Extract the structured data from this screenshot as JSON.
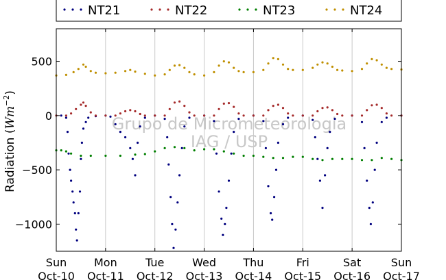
{
  "chart_data": {
    "type": "scatter",
    "ylabel_prefix": "Radiation (",
    "ylabel_unit": "Wm",
    "ylabel_exp": "−2",
    "ylabel_suffix": ")",
    "ylim": [
      -1250,
      800
    ],
    "yticks": [
      500,
      0,
      -500,
      -1000
    ],
    "ytick_labels": [
      "500",
      "0",
      "−500",
      "−1000"
    ],
    "xlim": [
      0,
      7
    ],
    "xticks": [
      {
        "day": "Sun",
        "date": "Oct-10"
      },
      {
        "day": "Mon",
        "date": "Oct-11"
      },
      {
        "day": "Tue",
        "date": "Oct-12"
      },
      {
        "day": "Wed",
        "date": "Oct-13"
      },
      {
        "day": "Thu",
        "date": "Oct-14"
      },
      {
        "day": "Fri",
        "date": "Oct-15"
      },
      {
        "day": "Sat",
        "date": "Oct-16"
      },
      {
        "day": "Sun",
        "date": "Oct-17"
      }
    ],
    "grid": "vertical",
    "legend_position": "top",
    "watermark_line1": "Grupo de Micrometeorologia",
    "watermark_line2": "IAG / USP",
    "series": [
      {
        "name": "NT21",
        "color": "#00007f",
        "points": [
          [
            0.1,
            0
          ],
          [
            0.2,
            -20
          ],
          [
            0.23,
            -150
          ],
          [
            0.25,
            -350
          ],
          [
            0.28,
            -500
          ],
          [
            0.3,
            -600
          ],
          [
            0.33,
            -700
          ],
          [
            0.35,
            -800
          ],
          [
            0.38,
            -900
          ],
          [
            0.4,
            -1050
          ],
          [
            0.42,
            -1150
          ],
          [
            0.45,
            -900
          ],
          [
            0.48,
            -700
          ],
          [
            0.5,
            -400
          ],
          [
            0.52,
            -250
          ],
          [
            0.55,
            -120
          ],
          [
            0.6,
            -60
          ],
          [
            0.65,
            -20
          ],
          [
            0.8,
            -5
          ],
          [
            1.0,
            0
          ],
          [
            1.1,
            -10
          ],
          [
            1.2,
            -80
          ],
          [
            1.3,
            -150
          ],
          [
            1.4,
            -200
          ],
          [
            1.5,
            -300
          ],
          [
            1.55,
            -400
          ],
          [
            1.6,
            -550
          ],
          [
            1.65,
            -250
          ],
          [
            1.7,
            -100
          ],
          [
            1.8,
            -20
          ],
          [
            2.0,
            0
          ],
          [
            2.2,
            -30
          ],
          [
            2.25,
            -200
          ],
          [
            2.28,
            -450
          ],
          [
            2.32,
            -750
          ],
          [
            2.35,
            -1000
          ],
          [
            2.38,
            -1220
          ],
          [
            2.42,
            -1050
          ],
          [
            2.46,
            -800
          ],
          [
            2.5,
            -550
          ],
          [
            2.55,
            -300
          ],
          [
            2.6,
            -100
          ],
          [
            2.7,
            -20
          ],
          [
            3.0,
            0
          ],
          [
            3.2,
            -50
          ],
          [
            3.25,
            -350
          ],
          [
            3.3,
            -700
          ],
          [
            3.35,
            -950
          ],
          [
            3.38,
            -1100
          ],
          [
            3.42,
            -1000
          ],
          [
            3.45,
            -850
          ],
          [
            3.5,
            -600
          ],
          [
            3.55,
            -350
          ],
          [
            3.6,
            -150
          ],
          [
            3.7,
            -30
          ],
          [
            4.0,
            0
          ],
          [
            4.2,
            -50
          ],
          [
            4.25,
            -300
          ],
          [
            4.3,
            -650
          ],
          [
            4.35,
            -900
          ],
          [
            4.38,
            -960
          ],
          [
            4.42,
            -750
          ],
          [
            4.46,
            -500
          ],
          [
            4.5,
            -250
          ],
          [
            4.6,
            -80
          ],
          [
            4.7,
            -20
          ],
          [
            5.0,
            0
          ],
          [
            5.2,
            -40
          ],
          [
            5.25,
            -200
          ],
          [
            5.3,
            -400
          ],
          [
            5.35,
            -600
          ],
          [
            5.4,
            -850
          ],
          [
            5.45,
            -550
          ],
          [
            5.5,
            -300
          ],
          [
            5.55,
            -150
          ],
          [
            5.65,
            -30
          ],
          [
            6.0,
            0
          ],
          [
            6.2,
            -60
          ],
          [
            6.25,
            -300
          ],
          [
            6.3,
            -600
          ],
          [
            6.35,
            -850
          ],
          [
            6.38,
            -1000
          ],
          [
            6.42,
            -800
          ],
          [
            6.46,
            -500
          ],
          [
            6.5,
            -250
          ],
          [
            6.6,
            -60
          ],
          [
            6.7,
            -20
          ],
          [
            7.0,
            0
          ]
        ]
      },
      {
        "name": "NT22",
        "color": "#a52a2a",
        "points": [
          [
            0.0,
            0
          ],
          [
            0.2,
            0
          ],
          [
            0.3,
            20
          ],
          [
            0.4,
            60
          ],
          [
            0.5,
            100
          ],
          [
            0.55,
            120
          ],
          [
            0.6,
            90
          ],
          [
            0.7,
            30
          ],
          [
            0.8,
            0
          ],
          [
            1.0,
            0
          ],
          [
            1.2,
            0
          ],
          [
            1.3,
            20
          ],
          [
            1.4,
            40
          ],
          [
            1.5,
            50
          ],
          [
            1.6,
            40
          ],
          [
            1.7,
            15
          ],
          [
            1.8,
            0
          ],
          [
            2.0,
            0
          ],
          [
            2.2,
            0
          ],
          [
            2.3,
            60
          ],
          [
            2.4,
            120
          ],
          [
            2.5,
            130
          ],
          [
            2.6,
            90
          ],
          [
            2.7,
            30
          ],
          [
            2.8,
            0
          ],
          [
            3.0,
            0
          ],
          [
            3.2,
            0
          ],
          [
            3.3,
            60
          ],
          [
            3.4,
            110
          ],
          [
            3.5,
            115
          ],
          [
            3.6,
            80
          ],
          [
            3.7,
            20
          ],
          [
            3.8,
            0
          ],
          [
            4.0,
            0
          ],
          [
            4.2,
            0
          ],
          [
            4.3,
            50
          ],
          [
            4.4,
            90
          ],
          [
            4.5,
            100
          ],
          [
            4.6,
            70
          ],
          [
            4.7,
            20
          ],
          [
            4.8,
            0
          ],
          [
            5.0,
            0
          ],
          [
            5.2,
            0
          ],
          [
            5.3,
            40
          ],
          [
            5.4,
            70
          ],
          [
            5.5,
            75
          ],
          [
            5.6,
            50
          ],
          [
            5.7,
            15
          ],
          [
            5.8,
            0
          ],
          [
            6.0,
            0
          ],
          [
            6.2,
            0
          ],
          [
            6.3,
            50
          ],
          [
            6.4,
            95
          ],
          [
            6.5,
            100
          ],
          [
            6.6,
            70
          ],
          [
            6.7,
            20
          ],
          [
            6.8,
            0
          ],
          [
            7.0,
            0
          ]
        ]
      },
      {
        "name": "NT23",
        "color": "#007f00",
        "points": [
          [
            0.0,
            -320
          ],
          [
            0.1,
            -320
          ],
          [
            0.2,
            -330
          ],
          [
            0.3,
            -350
          ],
          [
            0.5,
            -370
          ],
          [
            0.7,
            -370
          ],
          [
            1.0,
            -370
          ],
          [
            1.3,
            -370
          ],
          [
            1.6,
            -360
          ],
          [
            1.8,
            -355
          ],
          [
            2.0,
            -330
          ],
          [
            2.2,
            -300
          ],
          [
            2.4,
            -290
          ],
          [
            2.6,
            -300
          ],
          [
            2.8,
            -320
          ],
          [
            3.0,
            -310
          ],
          [
            3.2,
            -310
          ],
          [
            3.4,
            -330
          ],
          [
            3.6,
            -350
          ],
          [
            3.8,
            -370
          ],
          [
            4.0,
            -370
          ],
          [
            4.2,
            -380
          ],
          [
            4.4,
            -390
          ],
          [
            4.6,
            -390
          ],
          [
            4.8,
            -380
          ],
          [
            5.0,
            -380
          ],
          [
            5.2,
            -400
          ],
          [
            5.4,
            -410
          ],
          [
            5.6,
            -400
          ],
          [
            5.8,
            -400
          ],
          [
            6.0,
            -400
          ],
          [
            6.2,
            -410
          ],
          [
            6.4,
            -410
          ],
          [
            6.6,
            -390
          ],
          [
            6.8,
            -400
          ],
          [
            7.0,
            -410
          ]
        ]
      },
      {
        "name": "NT24",
        "color": "#bf8f00",
        "points": [
          [
            0.0,
            370
          ],
          [
            0.2,
            375
          ],
          [
            0.35,
            400
          ],
          [
            0.45,
            430
          ],
          [
            0.55,
            470
          ],
          [
            0.6,
            450
          ],
          [
            0.7,
            410
          ],
          [
            0.8,
            395
          ],
          [
            1.0,
            390
          ],
          [
            1.2,
            395
          ],
          [
            1.4,
            410
          ],
          [
            1.5,
            420
          ],
          [
            1.6,
            405
          ],
          [
            1.8,
            385
          ],
          [
            2.0,
            370
          ],
          [
            2.2,
            380
          ],
          [
            2.3,
            420
          ],
          [
            2.4,
            460
          ],
          [
            2.5,
            465
          ],
          [
            2.6,
            440
          ],
          [
            2.7,
            400
          ],
          [
            2.8,
            380
          ],
          [
            3.0,
            370
          ],
          [
            3.2,
            400
          ],
          [
            3.3,
            460
          ],
          [
            3.4,
            500
          ],
          [
            3.5,
            490
          ],
          [
            3.6,
            440
          ],
          [
            3.7,
            410
          ],
          [
            3.8,
            400
          ],
          [
            4.0,
            400
          ],
          [
            4.2,
            420
          ],
          [
            4.3,
            480
          ],
          [
            4.4,
            530
          ],
          [
            4.5,
            520
          ],
          [
            4.6,
            470
          ],
          [
            4.7,
            430
          ],
          [
            4.8,
            420
          ],
          [
            5.0,
            420
          ],
          [
            5.2,
            440
          ],
          [
            5.3,
            470
          ],
          [
            5.4,
            490
          ],
          [
            5.5,
            480
          ],
          [
            5.6,
            450
          ],
          [
            5.7,
            420
          ],
          [
            5.8,
            415
          ],
          [
            6.0,
            410
          ],
          [
            6.2,
            430
          ],
          [
            6.3,
            480
          ],
          [
            6.4,
            520
          ],
          [
            6.5,
            510
          ],
          [
            6.6,
            470
          ],
          [
            6.7,
            440
          ],
          [
            6.8,
            430
          ],
          [
            7.0,
            425
          ]
        ]
      }
    ]
  }
}
